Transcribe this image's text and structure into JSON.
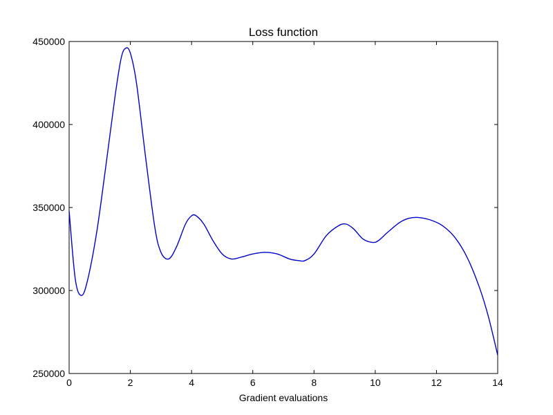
{
  "chart_data": {
    "type": "line",
    "title": "Loss function",
    "xlabel": "Gradient evaluations",
    "ylabel": "",
    "xlim": [
      0,
      14
    ],
    "ylim": [
      250000,
      450000
    ],
    "x_ticks": [
      0,
      2,
      4,
      6,
      8,
      10,
      12,
      14
    ],
    "x_tick_labels": [
      "0",
      "2",
      "4",
      "6",
      "8",
      "10",
      "12",
      "14"
    ],
    "y_ticks": [
      250000,
      300000,
      350000,
      400000,
      450000
    ],
    "y_tick_labels": [
      "250000",
      "300000",
      "350000",
      "400000",
      "450000"
    ],
    "grid": false,
    "legend": "none",
    "series": [
      {
        "color": "#0000cc",
        "x": [
          0,
          0.2,
          0.4,
          0.6,
          0.9,
          1.2,
          1.5,
          1.7,
          1.85,
          2.0,
          2.2,
          2.5,
          2.8,
          3.0,
          3.25,
          3.5,
          3.8,
          4.0,
          4.15,
          4.4,
          4.7,
          5.0,
          5.3,
          5.6,
          6.0,
          6.4,
          6.8,
          7.2,
          7.5,
          7.7,
          8.0,
          8.4,
          8.8,
          9.05,
          9.3,
          9.6,
          9.9,
          10.1,
          10.4,
          10.8,
          11.1,
          11.4,
          11.8,
          12.2,
          12.6,
          13.0,
          13.4,
          13.7,
          14.0
        ],
        "y": [
          348000,
          307000,
          297000,
          306000,
          335000,
          375000,
          417000,
          440000,
          446000,
          443000,
          425000,
          380000,
          338000,
          323000,
          319000,
          326000,
          340000,
          345000,
          345000,
          340000,
          330000,
          322000,
          319000,
          320000,
          322000,
          323000,
          322000,
          319000,
          318000,
          318000,
          322000,
          333000,
          339000,
          340000,
          337000,
          331000,
          329000,
          330000,
          335000,
          341000,
          343500,
          344000,
          342500,
          339000,
          332000,
          320000,
          302000,
          284000,
          261000
        ]
      }
    ]
  }
}
